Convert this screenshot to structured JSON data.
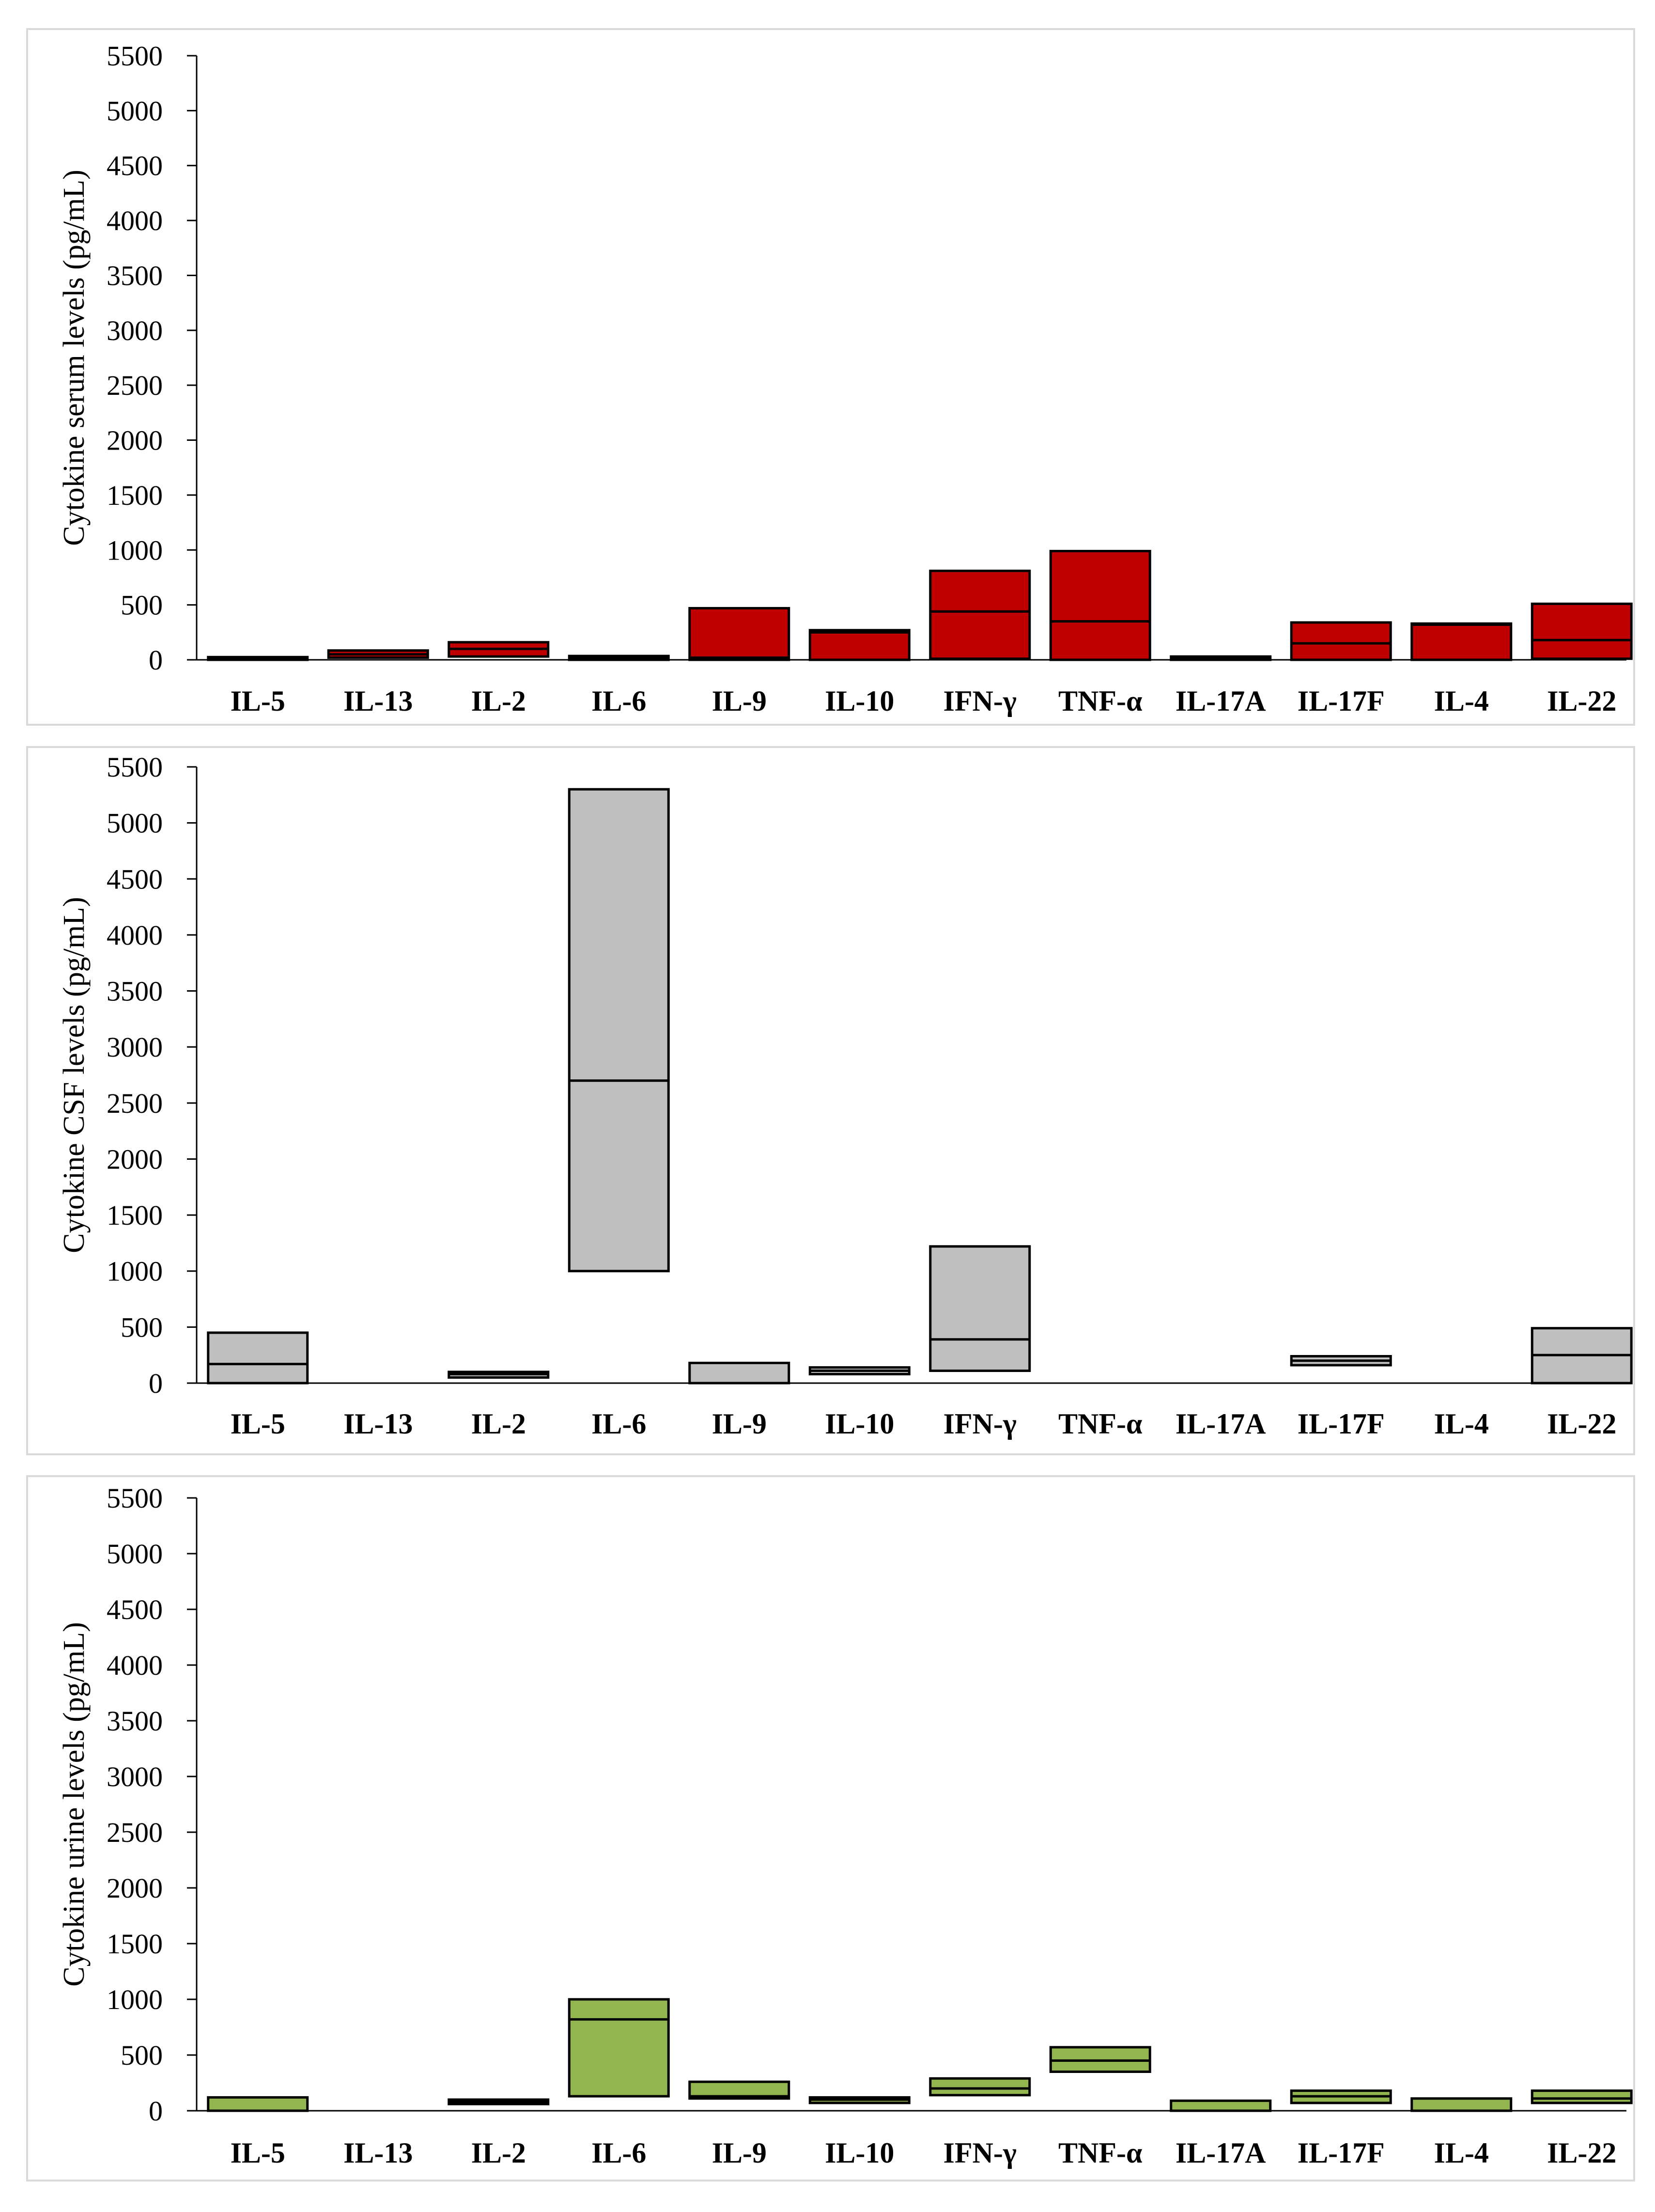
{
  "chart_data": [
    {
      "type": "box",
      "title": "",
      "ylabel": "Cytokine serum levels (pg/mL)",
      "ylim": [
        0,
        5500
      ],
      "yticks": [
        0,
        500,
        1000,
        1500,
        2000,
        2500,
        3000,
        3500,
        4000,
        4500,
        5000,
        5500
      ],
      "categories": [
        "IL-5",
        "IL-13",
        "IL-2",
        "IL-6",
        "IL-9",
        "IL-10",
        "IFN-γ",
        "TNF-α",
        "IL-17A",
        "IL-17F",
        "IL-4",
        "IL-22"
      ],
      "fill_color": "#c00000",
      "boxes": [
        {
          "low": 0,
          "median": 10,
          "high": 25
        },
        {
          "low": 20,
          "median": 50,
          "high": 85
        },
        {
          "low": 30,
          "median": 100,
          "high": 160
        },
        {
          "low": 0,
          "median": 15,
          "high": 35
        },
        {
          "low": 0,
          "median": 20,
          "high": 470
        },
        {
          "low": 0,
          "median": 250,
          "high": 270
        },
        {
          "low": 10,
          "median": 440,
          "high": 810
        },
        {
          "low": 0,
          "median": 350,
          "high": 990
        },
        {
          "low": 0,
          "median": 10,
          "high": 30
        },
        {
          "low": 0,
          "median": 150,
          "high": 340
        },
        {
          "low": 0,
          "median": 320,
          "high": 330
        },
        {
          "low": 10,
          "median": 180,
          "high": 510
        }
      ]
    },
    {
      "type": "box",
      "title": "",
      "ylabel": "Cytokine CSF levels (pg/mL)",
      "ylim": [
        0,
        5500
      ],
      "yticks": [
        0,
        500,
        1000,
        1500,
        2000,
        2500,
        3000,
        3500,
        4000,
        4500,
        5000,
        5500
      ],
      "categories": [
        "IL-5",
        "IL-13",
        "IL-2",
        "IL-6",
        "IL-9",
        "IL-10",
        "IFN-γ",
        "TNF-α",
        "IL-17A",
        "IL-17F",
        "IL-4",
        "IL-22"
      ],
      "fill_color": "#bfbfbf",
      "boxes": [
        {
          "low": 0,
          "median": 170,
          "high": 450
        },
        null,
        {
          "low": 50,
          "median": 80,
          "high": 100
        },
        {
          "low": 1000,
          "median": 2700,
          "high": 5300
        },
        {
          "low": 0,
          "median": 0,
          "high": 180
        },
        {
          "low": 80,
          "median": 110,
          "high": 140
        },
        {
          "low": 110,
          "median": 390,
          "high": 1220
        },
        null,
        null,
        {
          "low": 160,
          "median": 200,
          "high": 240
        },
        null,
        {
          "low": 0,
          "median": 250,
          "high": 490
        }
      ]
    },
    {
      "type": "box",
      "title": "",
      "ylabel": "Cytokine urine levels (pg/mL)",
      "ylim": [
        0,
        5500
      ],
      "yticks": [
        0,
        500,
        1000,
        1500,
        2000,
        2500,
        3000,
        3500,
        4000,
        4500,
        5000,
        5500
      ],
      "categories": [
        "IL-5",
        "IL-13",
        "IL-2",
        "IL-6",
        "IL-9",
        "IL-10",
        "IFN-γ",
        "TNF-α",
        "IL-17A",
        "IL-17F",
        "IL-4",
        "IL-22"
      ],
      "fill_color": "#92b550",
      "boxes": [
        {
          "low": 0,
          "median": 0,
          "high": 120
        },
        null,
        {
          "low": 60,
          "median": 80,
          "high": 100
        },
        {
          "low": 130,
          "median": 820,
          "high": 1000
        },
        {
          "low": 110,
          "median": 130,
          "high": 260
        },
        {
          "low": 70,
          "median": 100,
          "high": 120
        },
        {
          "low": 140,
          "median": 200,
          "high": 290
        },
        {
          "low": 350,
          "median": 450,
          "high": 570
        },
        {
          "low": 0,
          "median": 0,
          "high": 90
        },
        {
          "low": 70,
          "median": 130,
          "high": 180
        },
        {
          "low": 0,
          "median": 0,
          "high": 110
        },
        {
          "low": 70,
          "median": 110,
          "high": 180
        }
      ]
    }
  ]
}
